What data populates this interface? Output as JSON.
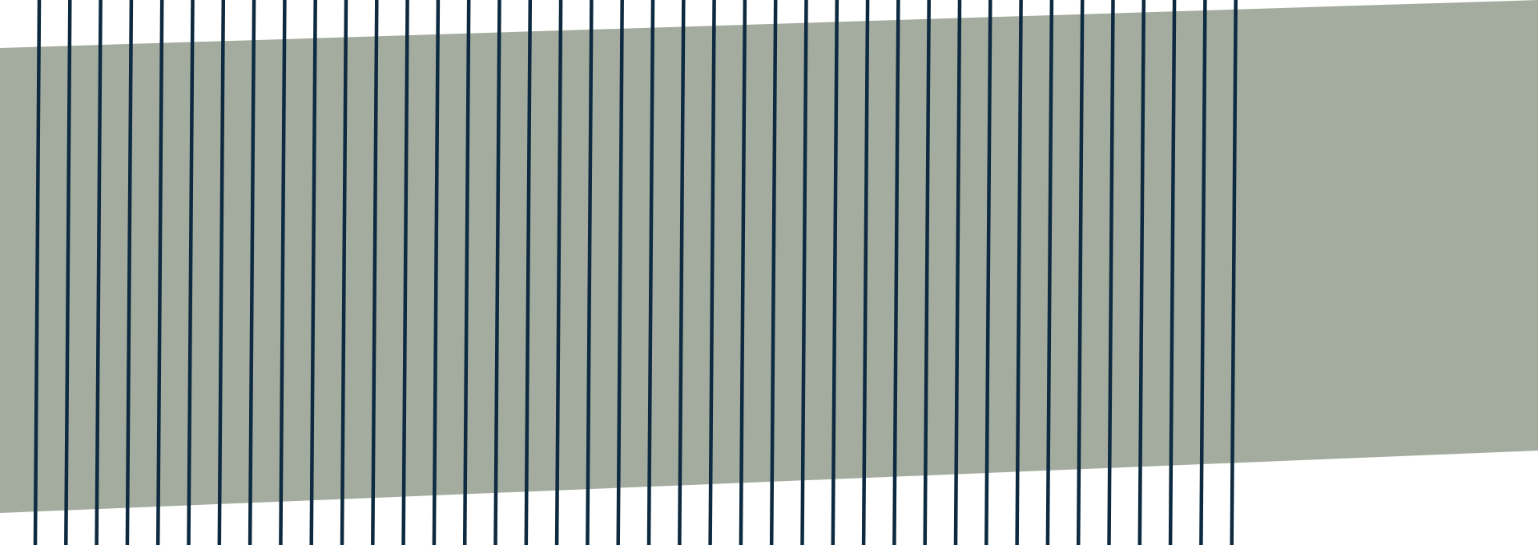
{
  "graphic": {
    "background_color": "#ffffff",
    "band_color": "#a3ac9e",
    "line_color": "#0d2a40",
    "line_count": 40
  }
}
